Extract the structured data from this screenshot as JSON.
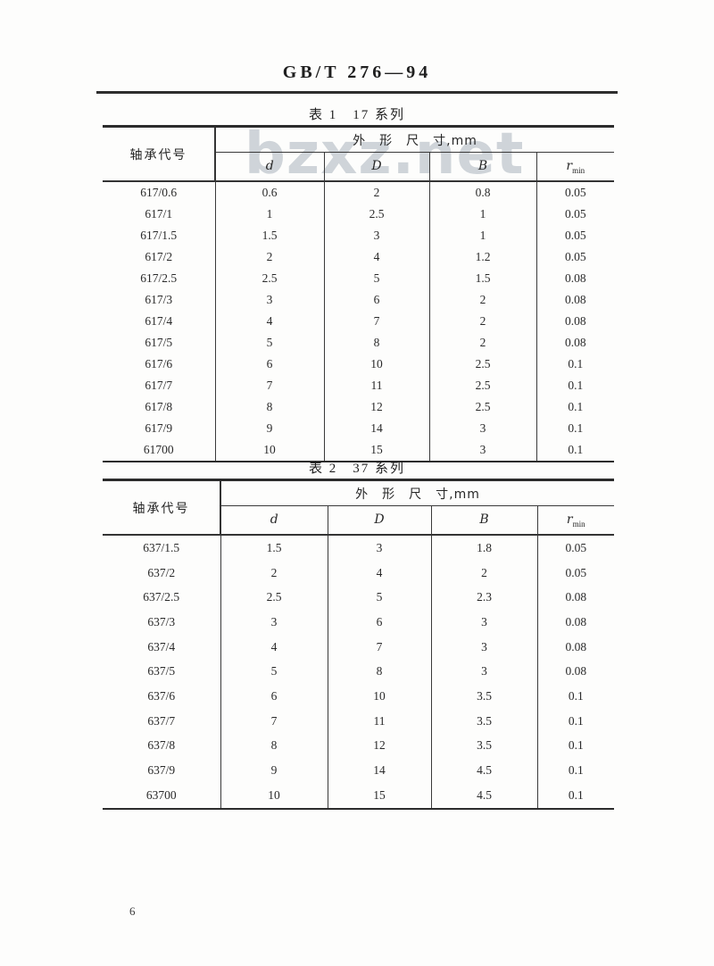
{
  "header": {
    "doc_code": "GB/T 276—94"
  },
  "watermark": "bzxz.net",
  "footer": {
    "page_number": "6"
  },
  "shared_headers": {
    "row_header": "轴承代号",
    "dim_group": "外　形　尺　寸,mm",
    "col_d": "d",
    "col_D": "D",
    "col_B": "B",
    "col_r": "r",
    "col_r_sub": "min"
  },
  "tables": [
    {
      "title": "表 1　17 系列",
      "rows": [
        [
          "617/0.6",
          "0.6",
          "2",
          "0.8",
          "0.05"
        ],
        [
          "617/1",
          "1",
          "2.5",
          "1",
          "0.05"
        ],
        [
          "617/1.5",
          "1.5",
          "3",
          "1",
          "0.05"
        ],
        [
          "617/2",
          "2",
          "4",
          "1.2",
          "0.05"
        ],
        [
          "617/2.5",
          "2.5",
          "5",
          "1.5",
          "0.08"
        ],
        [
          "617/3",
          "3",
          "6",
          "2",
          "0.08"
        ],
        [
          "617/4",
          "4",
          "7",
          "2",
          "0.08"
        ],
        [
          "617/5",
          "5",
          "8",
          "2",
          "0.08"
        ],
        [
          "617/6",
          "6",
          "10",
          "2.5",
          "0.1"
        ],
        [
          "617/7",
          "7",
          "11",
          "2.5",
          "0.1"
        ],
        [
          "617/8",
          "8",
          "12",
          "2.5",
          "0.1"
        ],
        [
          "617/9",
          "9",
          "14",
          "3",
          "0.1"
        ],
        [
          "61700",
          "10",
          "15",
          "3",
          "0.1"
        ]
      ]
    },
    {
      "title": "表 2　37 系列",
      "rows": [
        [
          "637/1.5",
          "1.5",
          "3",
          "1.8",
          "0.05"
        ],
        [
          "637/2",
          "2",
          "4",
          "2",
          "0.05"
        ],
        [
          "637/2.5",
          "2.5",
          "5",
          "2.3",
          "0.08"
        ],
        [
          "637/3",
          "3",
          "6",
          "3",
          "0.08"
        ],
        [
          "637/4",
          "4",
          "7",
          "3",
          "0.08"
        ],
        [
          "637/5",
          "5",
          "8",
          "3",
          "0.08"
        ],
        [
          "637/6",
          "6",
          "10",
          "3.5",
          "0.1"
        ],
        [
          "637/7",
          "7",
          "11",
          "3.5",
          "0.1"
        ],
        [
          "637/8",
          "8",
          "12",
          "3.5",
          "0.1"
        ],
        [
          "637/9",
          "9",
          "14",
          "4.5",
          "0.1"
        ],
        [
          "63700",
          "10",
          "15",
          "4.5",
          "0.1"
        ]
      ]
    }
  ]
}
